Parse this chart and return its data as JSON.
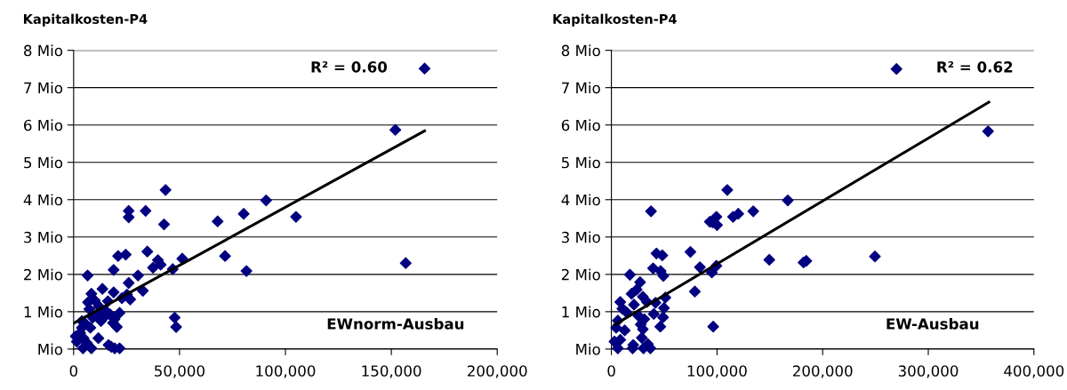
{
  "chart_data": [
    {
      "type": "scatter",
      "ylabel": "Kapitalkosten-P4",
      "xlabel": "EWnorm-Ausbau",
      "annotations": [
        "R² = 0.60"
      ],
      "xlim": [
        0,
        200000
      ],
      "ylim": [
        0,
        8
      ],
      "xticks": [
        0,
        {
          "value": 50000,
          "label": "50,000"
        },
        {
          "value": 100000,
          "label": "100,000"
        },
        {
          "value": 150000,
          "label": "150,000"
        },
        {
          "value": 200000,
          "label": "200,000"
        }
      ],
      "yticks": [
        {
          "value": 0,
          "label": "Mio"
        },
        {
          "value": 1,
          "label": "1 Mio"
        },
        {
          "value": 2,
          "label": "2 Mio"
        },
        {
          "value": 3,
          "label": "3 Mio"
        },
        {
          "value": 4,
          "label": "4 Mio"
        },
        {
          "value": 5,
          "label": "5 Mio"
        },
        {
          "value": 6,
          "label": "6 Mio"
        },
        {
          "value": 7,
          "label": "7 Mio"
        },
        {
          "value": 8,
          "label": "8 Mio"
        }
      ],
      "grid": "y",
      "marker": "diamond",
      "series": [
        {
          "color": "#000080",
          "x": [
            165700,
            151900,
            156800,
            105000,
            90900,
            80300,
            81600,
            68000,
            71500,
            43400,
            42700,
            34000,
            26000,
            26000,
            34800,
            51300,
            46800,
            39800,
            41100,
            37500,
            24600,
            21000,
            18900,
            30400,
            26000,
            32700,
            18900,
            13600,
            6600,
            8400,
            26700,
            25200,
            22800,
            47700,
            48400,
            21700,
            19300,
            20400,
            18600,
            15200,
            12000,
            10000,
            6800,
            7400,
            12900,
            11200,
            16200,
            17200,
            14200,
            9000,
            7900,
            5500,
            3900,
            3100,
            1000,
            1500,
            4700,
            6300,
            4400,
            8400,
            11700,
            16500,
            17800,
            19400,
            21700,
            3900
          ],
          "values": [
            7.51,
            5.87,
            2.3,
            3.54,
            3.98,
            3.62,
            2.09,
            3.42,
            2.49,
            4.26,
            3.34,
            3.7,
            3.7,
            3.53,
            2.61,
            2.42,
            2.14,
            2.38,
            2.26,
            2.18,
            2.53,
            2.49,
            2.12,
            1.97,
            1.77,
            1.56,
            1.52,
            1.61,
            1.97,
            1.48,
            1.33,
            1.46,
            1.36,
            0.84,
            0.59,
            0.97,
            0.8,
            0.59,
            0.7,
            1.02,
            1.14,
            1.3,
            1.25,
            1.07,
            0.75,
            0.93,
            1.28,
            0.93,
            0.84,
            0.84,
            0.57,
            0.68,
            0.57,
            0.43,
            0.34,
            0.2,
            0.29,
            0.16,
            0.02,
            0.02,
            0.29,
            0.11,
            0.06,
            0.02,
            0.02,
            0.75
          ]
        },
        {
          "type": "line",
          "color": "#000000",
          "marker": "none",
          "x": [
            0,
            165700
          ],
          "values": [
            0.69,
            5.84
          ]
        }
      ]
    },
    {
      "type": "scatter",
      "ylabel": "Kapitalkosten-P4",
      "xlabel": "EW-Ausbau",
      "annotations": [
        "R² = 0.62"
      ],
      "xlim": [
        0,
        400000
      ],
      "ylim": [
        0,
        8
      ],
      "xticks": [
        0,
        {
          "value": 100000,
          "label": "100,000"
        },
        {
          "value": 200000,
          "label": "200,000"
        },
        {
          "value": 300000,
          "label": "300,000"
        },
        {
          "value": 400000,
          "label": "400,000"
        }
      ],
      "yticks": [
        {
          "value": 0,
          "label": "Mio"
        },
        {
          "value": 1,
          "label": "1 Mio"
        },
        {
          "value": 2,
          "label": "2 Mio"
        },
        {
          "value": 3,
          "label": "3 Mio"
        },
        {
          "value": 4,
          "label": "4 Mio"
        },
        {
          "value": 5,
          "label": "5 Mio"
        },
        {
          "value": 6,
          "label": "6 Mio"
        },
        {
          "value": 7,
          "label": "7 Mio"
        },
        {
          "value": 8,
          "label": "8 Mio"
        }
      ],
      "grid": "y",
      "marker": "diamond",
      "series": [
        {
          "color": "#000080",
          "x": [
            269900,
            356600,
            249500,
            181900,
            184500,
            149500,
            167000,
            109700,
            134300,
            120100,
            115200,
            93200,
            99400,
            100000,
            95800,
            74800,
            83800,
            79000,
            95100,
            99400,
            96400,
            37500,
            42700,
            48200,
            39500,
            46600,
            49200,
            17500,
            27200,
            23900,
            19100,
            51100,
            49800,
            48900,
            46300,
            40100,
            41700,
            33700,
            29800,
            8400,
            10400,
            14200,
            21400,
            25600,
            31100,
            27800,
            29800,
            28800,
            12600,
            4500,
            6100,
            2900,
            8400,
            6100,
            20700,
            20100,
            30400,
            36900,
            34600
          ],
          "values": [
            7.5,
            5.83,
            2.48,
            2.32,
            2.36,
            2.39,
            3.98,
            4.26,
            3.69,
            3.62,
            3.54,
            3.41,
            3.54,
            3.32,
            3.39,
            2.6,
            2.19,
            1.54,
            2.05,
            2.23,
            0.6,
            3.69,
            2.56,
            2.51,
            2.16,
            2.09,
            1.96,
            1.99,
            1.79,
            1.59,
            1.48,
            1.38,
            1.1,
            0.85,
            0.6,
            0.94,
            1.24,
            1.26,
            1.4,
            1.26,
            1.08,
            0.99,
            1.19,
            0.89,
            0.8,
            0.66,
            0.53,
            0.3,
            0.5,
            0.57,
            0.76,
            0.2,
            0.25,
            0.02,
            0.11,
            0.02,
            0.02,
            0.02,
            0.13
          ]
        },
        {
          "type": "line",
          "color": "#000000",
          "marker": "none",
          "x": [
            3000,
            357300
          ],
          "values": [
            0.65,
            6.61
          ]
        }
      ]
    }
  ]
}
